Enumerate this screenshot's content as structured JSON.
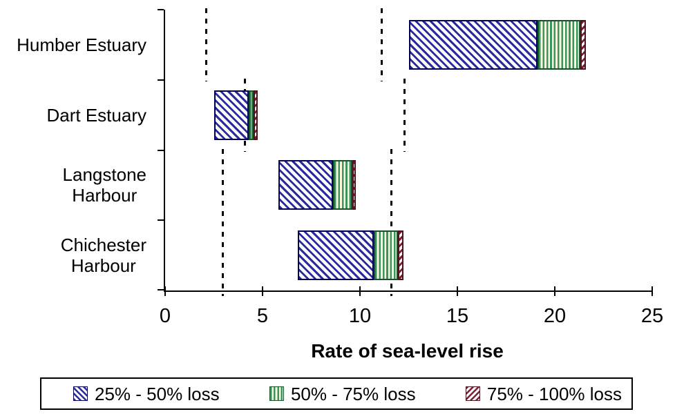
{
  "chart_data": {
    "type": "bar",
    "orientation": "horizontal",
    "title": "",
    "xlabel": "Rate of sea-level rise",
    "ylabel": "",
    "xlim": [
      0,
      25
    ],
    "xticks": [
      "0",
      "5",
      "10",
      "15",
      "20",
      "25"
    ],
    "xtick_values": [
      0,
      5,
      10,
      15,
      20,
      25
    ],
    "grid": "off",
    "legend_position": "bottom",
    "categories": [
      "Humber Estuary",
      "Dart Estuary",
      "Langstone\nHarbour",
      "Chichester\nHarbour"
    ],
    "series": [
      {
        "name": "25% - 50% loss",
        "pattern": "blue-diagonal-hatch",
        "ranges": [
          [
            12.5,
            19.1
          ],
          [
            2.5,
            4.3
          ],
          [
            5.8,
            8.6
          ],
          [
            6.8,
            10.7
          ]
        ]
      },
      {
        "name": "50% - 75% loss",
        "pattern": "green-vertical-stripes",
        "ranges": [
          [
            19.1,
            21.3
          ],
          [
            4.3,
            4.55
          ],
          [
            8.6,
            9.6
          ],
          [
            10.7,
            11.95
          ]
        ]
      },
      {
        "name": "75% - 100% loss",
        "pattern": "red-diagonal-hatch",
        "ranges": [
          [
            21.3,
            21.6
          ],
          [
            4.55,
            4.75
          ],
          [
            9.6,
            9.8
          ],
          [
            11.95,
            12.25
          ]
        ]
      }
    ],
    "dashed_reference_lines": [
      {
        "value": 2.1,
        "rows": [
          0
        ]
      },
      {
        "value": 11.1,
        "rows": [
          0
        ]
      },
      {
        "value": 4.1,
        "rows": [
          1
        ]
      },
      {
        "value": 12.3,
        "rows": [
          1
        ]
      },
      {
        "value": 2.95,
        "rows": [
          2,
          3
        ]
      },
      {
        "value": 11.6,
        "rows": [
          2,
          3
        ]
      }
    ],
    "colors": {
      "series_fg": [
        "#2a2aa0",
        "#3a9361",
        "#7d1f2e"
      ],
      "green_stripe_bg": "#fbf8dc",
      "axis": "#000000",
      "dashed_line": "#000000",
      "background": "#ffffff"
    }
  }
}
